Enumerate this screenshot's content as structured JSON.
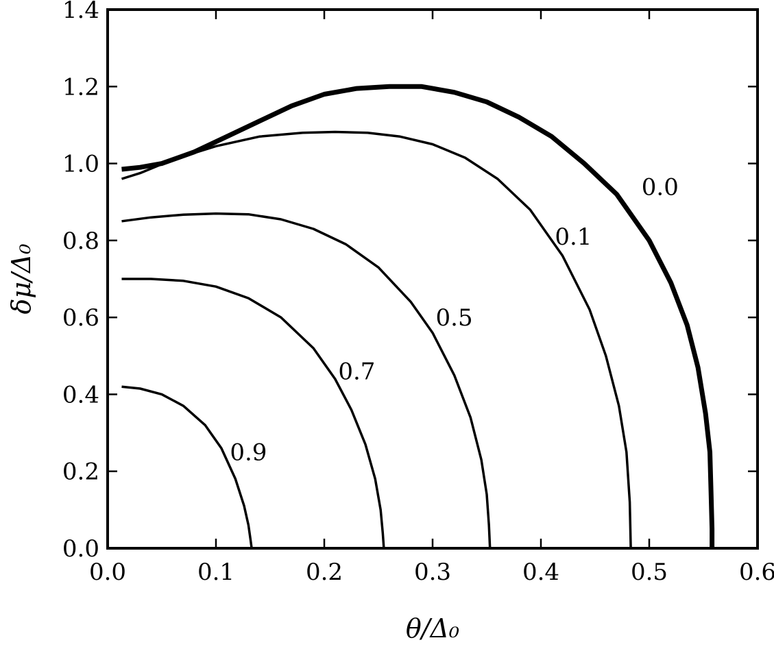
{
  "chart_data": {
    "type": "line",
    "title": "",
    "xlabel": "θ/Δ₀",
    "ylabel": "δμ/Δ₀",
    "xlim": [
      0.0,
      0.6
    ],
    "ylim": [
      0.0,
      1.4
    ],
    "x_ticks": [
      "0.0",
      "0.1",
      "0.2",
      "0.3",
      "0.4",
      "0.5",
      "0.6"
    ],
    "y_ticks": [
      "0.0",
      "0.2",
      "0.4",
      "0.6",
      "0.8",
      "1.0",
      "1.2",
      "1.4"
    ],
    "grid": false,
    "legend": "none",
    "series": [
      {
        "name": "0.0",
        "thick": true,
        "label_at": [
          0.51,
          0.94
        ],
        "x": [
          0.013,
          0.03,
          0.05,
          0.08,
          0.11,
          0.14,
          0.17,
          0.2,
          0.23,
          0.26,
          0.29,
          0.32,
          0.35,
          0.38,
          0.41,
          0.44,
          0.47,
          0.5,
          0.52,
          0.535,
          0.545,
          0.552,
          0.556,
          0.557,
          0.558,
          0.558
        ],
        "y": [
          0.985,
          0.99,
          1.0,
          1.03,
          1.07,
          1.11,
          1.15,
          1.18,
          1.195,
          1.2,
          1.2,
          1.185,
          1.16,
          1.12,
          1.07,
          1.0,
          0.92,
          0.8,
          0.69,
          0.58,
          0.47,
          0.35,
          0.25,
          0.15,
          0.05,
          0.0
        ]
      },
      {
        "name": "0.1",
        "thick": false,
        "label_at": [
          0.43,
          0.81
        ],
        "x": [
          0.013,
          0.03,
          0.06,
          0.1,
          0.14,
          0.18,
          0.21,
          0.24,
          0.27,
          0.3,
          0.33,
          0.36,
          0.39,
          0.42,
          0.445,
          0.46,
          0.472,
          0.479,
          0.482,
          0.483
        ],
        "y": [
          0.96,
          0.975,
          1.01,
          1.045,
          1.07,
          1.08,
          1.082,
          1.08,
          1.07,
          1.05,
          1.015,
          0.96,
          0.88,
          0.76,
          0.62,
          0.5,
          0.37,
          0.25,
          0.12,
          0.0
        ]
      },
      {
        "name": "0.5",
        "thick": false,
        "label_at": [
          0.32,
          0.6
        ],
        "x": [
          0.013,
          0.04,
          0.07,
          0.1,
          0.13,
          0.16,
          0.19,
          0.22,
          0.25,
          0.28,
          0.3,
          0.32,
          0.335,
          0.345,
          0.35,
          0.352,
          0.353
        ],
        "y": [
          0.85,
          0.86,
          0.867,
          0.87,
          0.868,
          0.855,
          0.83,
          0.79,
          0.73,
          0.64,
          0.56,
          0.45,
          0.34,
          0.23,
          0.14,
          0.06,
          0.0
        ]
      },
      {
        "name": "0.7",
        "thick": false,
        "label_at": [
          0.23,
          0.46
        ],
        "x": [
          0.013,
          0.04,
          0.07,
          0.1,
          0.13,
          0.16,
          0.19,
          0.21,
          0.225,
          0.238,
          0.247,
          0.252,
          0.254,
          0.255
        ],
        "y": [
          0.7,
          0.7,
          0.695,
          0.68,
          0.65,
          0.6,
          0.52,
          0.44,
          0.36,
          0.27,
          0.18,
          0.1,
          0.04,
          0.0
        ]
      },
      {
        "name": "0.9",
        "thick": false,
        "label_at": [
          0.13,
          0.25
        ],
        "x": [
          0.013,
          0.03,
          0.05,
          0.07,
          0.09,
          0.105,
          0.118,
          0.126,
          0.13,
          0.132,
          0.133
        ],
        "y": [
          0.42,
          0.415,
          0.4,
          0.37,
          0.32,
          0.26,
          0.18,
          0.11,
          0.06,
          0.02,
          0.0
        ]
      }
    ]
  }
}
